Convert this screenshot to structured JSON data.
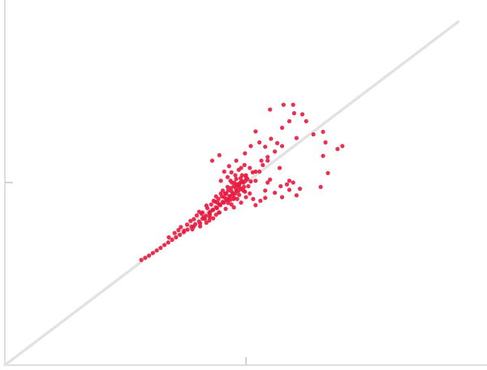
{
  "chart_data": {
    "type": "scatter",
    "title": "",
    "xlabel": "",
    "ylabel": "",
    "grid": false,
    "legend": "none",
    "xlim": [
      0,
      1
    ],
    "ylim": [
      0,
      1
    ],
    "reference_line": {
      "x": [
        0,
        0.94
      ],
      "y": [
        0,
        0.94
      ]
    },
    "series": [
      {
        "color": "#e8193f",
        "points": [
          [
            0.283,
            0.288
          ],
          [
            0.291,
            0.294
          ],
          [
            0.299,
            0.3
          ],
          [
            0.307,
            0.307
          ],
          [
            0.315,
            0.314
          ],
          [
            0.323,
            0.321
          ],
          [
            0.331,
            0.329
          ],
          [
            0.339,
            0.336
          ],
          [
            0.347,
            0.343
          ],
          [
            0.355,
            0.35
          ],
          [
            0.363,
            0.357
          ],
          [
            0.371,
            0.364
          ],
          [
            0.379,
            0.371
          ],
          [
            0.387,
            0.379
          ],
          [
            0.395,
            0.386
          ],
          [
            0.403,
            0.393
          ],
          [
            0.41,
            0.401
          ],
          [
            0.417,
            0.409
          ],
          [
            0.424,
            0.417
          ],
          [
            0.431,
            0.425
          ],
          [
            0.438,
            0.432
          ],
          [
            0.445,
            0.44
          ],
          [
            0.452,
            0.447
          ],
          [
            0.459,
            0.455
          ],
          [
            0.466,
            0.463
          ],
          [
            0.473,
            0.47
          ],
          [
            0.48,
            0.478
          ],
          [
            0.487,
            0.486
          ],
          [
            0.34,
            0.35
          ],
          [
            0.352,
            0.362
          ],
          [
            0.365,
            0.378
          ],
          [
            0.372,
            0.368
          ],
          [
            0.385,
            0.395
          ],
          [
            0.392,
            0.38
          ],
          [
            0.398,
            0.41
          ],
          [
            0.405,
            0.388
          ],
          [
            0.41,
            0.418
          ],
          [
            0.415,
            0.4
          ],
          [
            0.42,
            0.43
          ],
          [
            0.425,
            0.412
          ],
          [
            0.428,
            0.44
          ],
          [
            0.432,
            0.425
          ],
          [
            0.436,
            0.448
          ],
          [
            0.44,
            0.43
          ],
          [
            0.443,
            0.455
          ],
          [
            0.447,
            0.438
          ],
          [
            0.45,
            0.462
          ],
          [
            0.454,
            0.445
          ],
          [
            0.457,
            0.47
          ],
          [
            0.46,
            0.452
          ],
          [
            0.463,
            0.478
          ],
          [
            0.466,
            0.458
          ],
          [
            0.469,
            0.485
          ],
          [
            0.472,
            0.465
          ],
          [
            0.475,
            0.49
          ],
          [
            0.478,
            0.47
          ],
          [
            0.481,
            0.495
          ],
          [
            0.484,
            0.476
          ],
          [
            0.487,
            0.498
          ],
          [
            0.49,
            0.482
          ],
          [
            0.493,
            0.503
          ],
          [
            0.496,
            0.488
          ],
          [
            0.499,
            0.505
          ],
          [
            0.403,
            0.42
          ],
          [
            0.412,
            0.405
          ],
          [
            0.418,
            0.437
          ],
          [
            0.426,
            0.42
          ],
          [
            0.433,
            0.45
          ],
          [
            0.441,
            0.445
          ],
          [
            0.448,
            0.47
          ],
          [
            0.455,
            0.46
          ],
          [
            0.462,
            0.488
          ],
          [
            0.47,
            0.476
          ],
          [
            0.476,
            0.5
          ],
          [
            0.483,
            0.492
          ],
          [
            0.489,
            0.512
          ],
          [
            0.495,
            0.5
          ],
          [
            0.408,
            0.415
          ],
          [
            0.425,
            0.405
          ],
          [
            0.438,
            0.462
          ],
          [
            0.444,
            0.418
          ],
          [
            0.452,
            0.478
          ],
          [
            0.459,
            0.47
          ],
          [
            0.467,
            0.452
          ],
          [
            0.471,
            0.5
          ],
          [
            0.479,
            0.485
          ],
          [
            0.486,
            0.466
          ],
          [
            0.492,
            0.52
          ],
          [
            0.498,
            0.475
          ],
          [
            0.468,
            0.505
          ],
          [
            0.474,
            0.455
          ],
          [
            0.48,
            0.51
          ],
          [
            0.486,
            0.495
          ],
          [
            0.392,
            0.4
          ],
          [
            0.378,
            0.385
          ],
          [
            0.36,
            0.37
          ],
          [
            0.43,
            0.56
          ],
          [
            0.445,
            0.575
          ],
          [
            0.465,
            0.545
          ],
          [
            0.48,
            0.56
          ],
          [
            0.49,
            0.54
          ],
          [
            0.5,
            0.52
          ],
          [
            0.455,
            0.53
          ],
          [
            0.47,
            0.528
          ],
          [
            0.485,
            0.535
          ],
          [
            0.497,
            0.548
          ],
          [
            0.508,
            0.54
          ],
          [
            0.514,
            0.528
          ],
          [
            0.503,
            0.51
          ],
          [
            0.51,
            0.503
          ],
          [
            0.505,
            0.49
          ],
          [
            0.478,
            0.52
          ],
          [
            0.462,
            0.515
          ],
          [
            0.448,
            0.505
          ],
          [
            0.495,
            0.478
          ],
          [
            0.482,
            0.455
          ],
          [
            0.47,
            0.44
          ],
          [
            0.458,
            0.428
          ],
          [
            0.508,
            0.47
          ],
          [
            0.5,
            0.46
          ],
          [
            0.528,
            0.53
          ],
          [
            0.535,
            0.548
          ],
          [
            0.545,
            0.56
          ],
          [
            0.498,
            0.58
          ],
          [
            0.51,
            0.6
          ],
          [
            0.52,
            0.64
          ],
          [
            0.528,
            0.61
          ],
          [
            0.54,
            0.598
          ],
          [
            0.552,
            0.62
          ],
          [
            0.565,
            0.608
          ],
          [
            0.54,
            0.478
          ],
          [
            0.56,
            0.472
          ],
          [
            0.572,
            0.49
          ],
          [
            0.585,
            0.495
          ],
          [
            0.598,
            0.5
          ],
          [
            0.605,
            0.465
          ],
          [
            0.612,
            0.483
          ],
          [
            0.53,
            0.45
          ],
          [
            0.52,
            0.438
          ],
          [
            0.54,
            0.458
          ],
          [
            0.515,
            0.455
          ],
          [
            0.575,
            0.46
          ],
          [
            0.59,
            0.48
          ],
          [
            0.55,
            0.508
          ],
          [
            0.52,
            0.505
          ],
          [
            0.49,
            0.445
          ],
          [
            0.475,
            0.432
          ],
          [
            0.445,
            0.418
          ],
          [
            0.432,
            0.402
          ],
          [
            0.418,
            0.39
          ],
          [
            0.575,
            0.65
          ],
          [
            0.59,
            0.668
          ],
          [
            0.6,
            0.69
          ],
          [
            0.55,
            0.7
          ],
          [
            0.578,
            0.713
          ],
          [
            0.598,
            0.713
          ],
          [
            0.617,
            0.687
          ],
          [
            0.625,
            0.668
          ],
          [
            0.64,
            0.632
          ],
          [
            0.66,
            0.639
          ],
          [
            0.665,
            0.61
          ],
          [
            0.69,
            0.592
          ],
          [
            0.7,
            0.6
          ],
          [
            0.66,
            0.573
          ],
          [
            0.67,
            0.526
          ],
          [
            0.655,
            0.488
          ],
          [
            0.605,
            0.622
          ],
          [
            0.59,
            0.505
          ],
          [
            0.57,
            0.54
          ],
          [
            0.545,
            0.5
          ],
          [
            0.532,
            0.56
          ],
          [
            0.52,
            0.53
          ],
          [
            0.575,
            0.6
          ],
          [
            0.56,
            0.585
          ],
          [
            0.545,
            0.57
          ],
          [
            0.438,
            0.412
          ],
          [
            0.424,
            0.396
          ],
          [
            0.405,
            0.38
          ],
          [
            0.389,
            0.372
          ],
          [
            0.463,
            0.444
          ],
          [
            0.476,
            0.458
          ],
          [
            0.49,
            0.502
          ],
          [
            0.5,
            0.515
          ]
        ]
      }
    ]
  }
}
